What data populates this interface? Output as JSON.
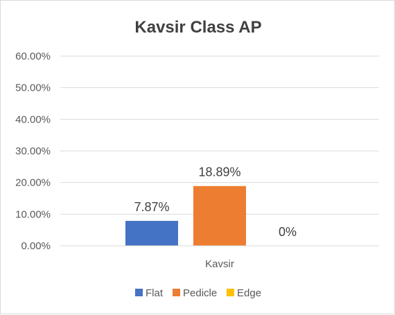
{
  "chart_data": {
    "type": "bar",
    "title": "Kavsir Class AP",
    "categories": [
      "Kavsir"
    ],
    "series": [
      {
        "name": "Flat",
        "values": [
          7.87
        ],
        "label": "7.87%",
        "color": "#4472c4"
      },
      {
        "name": "Pedicle",
        "values": [
          18.89
        ],
        "label": "18.89%",
        "color": "#ed7d31"
      },
      {
        "name": "Edge",
        "values": [
          0
        ],
        "label": "0%",
        "color": "#ffc000"
      }
    ],
    "y_ticks": [
      "0.00%",
      "10.00%",
      "20.00%",
      "30.00%",
      "40.00%",
      "50.00%",
      "60.00%"
    ],
    "ylim": [
      0,
      60
    ],
    "grid": true,
    "legend_position": "bottom",
    "xlabel": "",
    "ylabel": ""
  }
}
